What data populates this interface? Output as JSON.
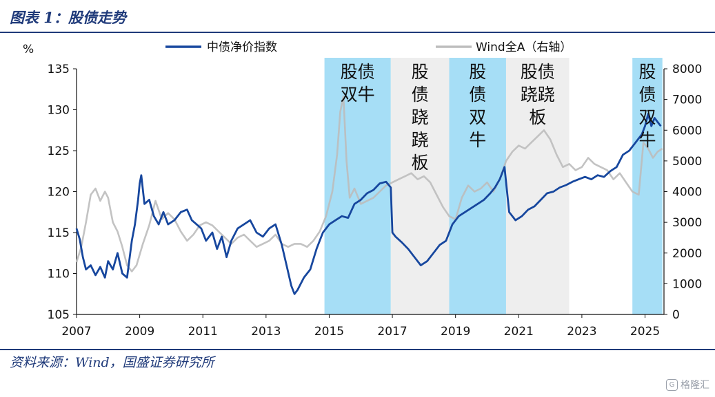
{
  "header": {
    "title": "图表 1：股债走势"
  },
  "footer": {
    "source": "资料来源：Wind，国盛证券研究所",
    "watermark": "格隆汇"
  },
  "colors": {
    "bond": "#17479e",
    "equity": "#bdbdbd",
    "bull": "#a6def6",
    "seesaw": "#eeeeee",
    "rule": "#1f3a7a"
  },
  "chart_data": {
    "type": "line",
    "title": "",
    "ylabel_left": "%",
    "ylim_left": [
      105,
      135
    ],
    "yticks_left": [
      105,
      110,
      115,
      120,
      125,
      130,
      135
    ],
    "ylim_right": [
      0,
      8000
    ],
    "yticks_right": [
      0,
      1000,
      2000,
      3000,
      4000,
      5000,
      6000,
      7000,
      8000
    ],
    "xlim": [
      2007,
      2025.6
    ],
    "xticks": [
      2007,
      2009,
      2011,
      2013,
      2015,
      2017,
      2019,
      2021,
      2023,
      2025
    ],
    "legend": {
      "placement": "top"
    },
    "series": [
      {
        "name": "中债净价指数",
        "axis": "left",
        "color": "#17479e",
        "x": [
          2007.0,
          2007.1,
          2007.2,
          2007.3,
          2007.45,
          2007.6,
          2007.75,
          2007.9,
          2008.0,
          2008.15,
          2008.3,
          2008.45,
          2008.6,
          2008.75,
          2008.85,
          2008.95,
          2009.0,
          2009.05,
          2009.15,
          2009.3,
          2009.45,
          2009.6,
          2009.75,
          2009.9,
          2010.1,
          2010.3,
          2010.5,
          2010.65,
          2010.8,
          2010.95,
          2011.1,
          2011.3,
          2011.45,
          2011.6,
          2011.75,
          2011.9,
          2012.1,
          2012.3,
          2012.5,
          2012.7,
          2012.9,
          2013.1,
          2013.3,
          2013.5,
          2013.65,
          2013.8,
          2013.9,
          2014.0,
          2014.2,
          2014.4,
          2014.6,
          2014.8,
          2015.0,
          2015.2,
          2015.4,
          2015.6,
          2015.8,
          2016.0,
          2016.2,
          2016.4,
          2016.6,
          2016.8,
          2016.95,
          2017.0,
          2017.1,
          2017.3,
          2017.5,
          2017.7,
          2017.9,
          2018.1,
          2018.3,
          2018.5,
          2018.7,
          2018.9,
          2019.1,
          2019.3,
          2019.5,
          2019.7,
          2019.9,
          2020.1,
          2020.25,
          2020.4,
          2020.55,
          2020.7,
          2020.9,
          2021.1,
          2021.3,
          2021.5,
          2021.7,
          2021.9,
          2022.1,
          2022.3,
          2022.5,
          2022.7,
          2022.9,
          2023.1,
          2023.3,
          2023.5,
          2023.7,
          2023.9,
          2024.1,
          2024.3,
          2024.5,
          2024.7,
          2024.9,
          2025.0,
          2025.1,
          2025.2,
          2025.3,
          2025.4,
          2025.5
        ],
        "values": [
          115.5,
          114.2,
          112.0,
          110.5,
          111.0,
          109.8,
          110.8,
          109.5,
          111.5,
          110.5,
          112.5,
          110.0,
          109.5,
          114.0,
          116.0,
          119.0,
          121.0,
          122.0,
          118.5,
          119.0,
          117.0,
          116.0,
          117.5,
          116.0,
          116.5,
          117.5,
          117.8,
          116.5,
          116.0,
          115.5,
          114.0,
          115.0,
          113.0,
          114.5,
          112.0,
          114.0,
          115.5,
          116.0,
          116.5,
          115.0,
          114.5,
          115.5,
          116.0,
          113.5,
          111.0,
          108.5,
          107.5,
          108.0,
          109.5,
          110.5,
          113.0,
          115.0,
          116.0,
          116.5,
          117.0,
          116.8,
          118.5,
          119.0,
          119.8,
          120.2,
          121.0,
          121.2,
          120.5,
          115.0,
          114.5,
          113.8,
          113.0,
          112.0,
          111.0,
          111.5,
          112.5,
          113.5,
          114.0,
          116.0,
          117.0,
          117.5,
          118.0,
          118.5,
          119.0,
          119.8,
          120.5,
          121.5,
          123.0,
          117.5,
          116.5,
          117.0,
          117.8,
          118.2,
          119.0,
          119.8,
          120.0,
          120.5,
          120.8,
          121.2,
          121.5,
          121.8,
          121.5,
          122.0,
          121.8,
          122.5,
          123.0,
          124.5,
          125.0,
          126.0,
          127.0,
          128.0,
          129.5,
          128.0,
          129.0,
          128.5,
          128.0
        ]
      },
      {
        "name": "Wind全A（右轴）",
        "axis": "right",
        "color": "#bdbdbd",
        "x": [
          2007.0,
          2007.15,
          2007.3,
          2007.45,
          2007.6,
          2007.75,
          2007.9,
          2008.0,
          2008.15,
          2008.3,
          2008.45,
          2008.6,
          2008.75,
          2008.9,
          2009.1,
          2009.3,
          2009.5,
          2009.7,
          2009.9,
          2010.1,
          2010.3,
          2010.5,
          2010.7,
          2010.9,
          2011.1,
          2011.3,
          2011.5,
          2011.7,
          2011.9,
          2012.1,
          2012.3,
          2012.5,
          2012.7,
          2012.9,
          2013.1,
          2013.3,
          2013.5,
          2013.7,
          2013.9,
          2014.1,
          2014.3,
          2014.5,
          2014.7,
          2014.9,
          2015.1,
          2015.25,
          2015.35,
          2015.45,
          2015.55,
          2015.65,
          2015.8,
          2016.0,
          2016.2,
          2016.4,
          2016.6,
          2016.8,
          2017.0,
          2017.2,
          2017.4,
          2017.6,
          2017.8,
          2018.0,
          2018.2,
          2018.4,
          2018.6,
          2018.8,
          2019.0,
          2019.2,
          2019.4,
          2019.6,
          2019.8,
          2020.0,
          2020.2,
          2020.4,
          2020.6,
          2020.8,
          2021.0,
          2021.2,
          2021.4,
          2021.6,
          2021.8,
          2022.0,
          2022.2,
          2022.4,
          2022.6,
          2022.8,
          2023.0,
          2023.2,
          2023.4,
          2023.6,
          2023.8,
          2024.0,
          2024.2,
          2024.4,
          2024.6,
          2024.8,
          2024.95,
          2025.1,
          2025.25,
          2025.4,
          2025.55
        ],
        "values": [
          1700,
          2200,
          3000,
          3900,
          4100,
          3700,
          4000,
          3800,
          3000,
          2700,
          2200,
          1600,
          1400,
          1600,
          2300,
          2900,
          3700,
          3100,
          3300,
          3100,
          2700,
          2400,
          2600,
          2900,
          3000,
          2900,
          2700,
          2500,
          2300,
          2500,
          2600,
          2400,
          2200,
          2300,
          2400,
          2600,
          2300,
          2200,
          2300,
          2300,
          2200,
          2400,
          2700,
          3200,
          4000,
          5200,
          6600,
          7100,
          5000,
          3800,
          4100,
          3600,
          3700,
          3800,
          4000,
          4200,
          4300,
          4400,
          4500,
          4600,
          4400,
          4500,
          4300,
          3900,
          3500,
          3200,
          3100,
          3800,
          4200,
          4000,
          4100,
          4300,
          4000,
          4400,
          5000,
          5300,
          5500,
          5400,
          5600,
          5800,
          6000,
          5700,
          5200,
          4800,
          4900,
          4700,
          4800,
          5100,
          4900,
          4800,
          4700,
          4400,
          4600,
          4300,
          4000,
          3900,
          5600,
          5400,
          5100,
          5300,
          5400
        ]
      }
    ],
    "shaded_regions": [
      {
        "x0": 2014.85,
        "x1": 2016.95,
        "type": "bull",
        "label": "股债双牛",
        "label_lines": [
          "股债",
          "双牛"
        ],
        "orientation": "horizontal"
      },
      {
        "x0": 2016.95,
        "x1": 2018.8,
        "type": "seesaw",
        "label": "股债跷跷板",
        "label_lines": [
          "股",
          "债",
          "跷",
          "跷",
          "板"
        ],
        "orientation": "vertical"
      },
      {
        "x0": 2018.8,
        "x1": 2020.6,
        "type": "bull",
        "label": "股债双牛",
        "label_lines": [
          "股",
          "债",
          "双",
          "牛"
        ],
        "orientation": "vertical"
      },
      {
        "x0": 2020.6,
        "x1": 2022.6,
        "type": "seesaw",
        "label": "股债跷跷板",
        "label_lines": [
          "股债",
          "跷跷",
          "板"
        ],
        "orientation": "horizontal"
      },
      {
        "x0": 2024.6,
        "x1": 2025.55,
        "type": "bull",
        "label": "股债双牛",
        "label_lines": [
          "股",
          "债",
          "双",
          "牛"
        ],
        "orientation": "vertical"
      }
    ]
  }
}
